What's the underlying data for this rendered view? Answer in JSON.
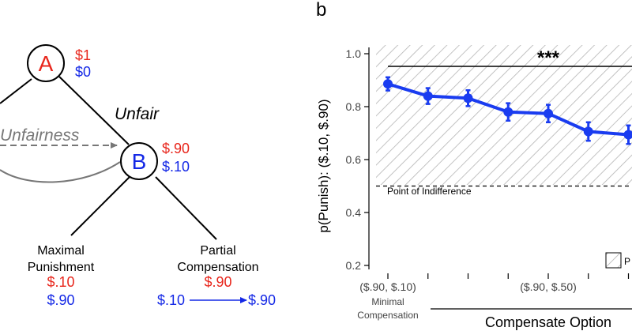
{
  "panel_a": {
    "node_a": {
      "label": "A",
      "amount_red": "$1",
      "amount_blue": "$0"
    },
    "node_b": {
      "label": "B",
      "amount_red": "$.90",
      "amount_blue": "$.10"
    },
    "unfair_label": "Unfair",
    "unfairness_label": "Unfairness",
    "left_option": {
      "title_line1": "Maximal",
      "title_line2": "Punishment",
      "amount_red": "$.10",
      "amount_blue": "$.90"
    },
    "right_option": {
      "title_line1": "Partial",
      "title_line2": "Compensation",
      "amount_red": "$.90",
      "amount_blue_from": "$.10",
      "amount_blue_to": "$.90"
    }
  },
  "panel_b": {
    "panel_label": "b",
    "significance": "***",
    "indifference_label": "Point of Indifference",
    "legend_partial": "P",
    "xtick_left_line1": "($.90, $.10)",
    "xtick_left_line2": "Minimal",
    "xtick_left_line3": "Compensation",
    "xtick_mid": "($.90, $.50)"
  },
  "colors": {
    "red": "#e8261c",
    "blue": "#1428e6",
    "line_blue": "#1a3cf0",
    "gray": "#777777"
  },
  "chart_data": {
    "type": "line",
    "title": "",
    "xlabel": "Compensate Option",
    "ylabel": "p(Punish): ($.10, $.90)",
    "ylim": [
      0.18,
      1.03
    ],
    "yticks": [
      "0.2",
      "0.4",
      "0.6",
      "0.8",
      "1.0"
    ],
    "ytick_values": [
      0.2,
      0.4,
      0.6,
      0.8,
      1.0
    ],
    "indifference_value": 0.5,
    "series": [
      {
        "name": "p(Punish)",
        "x": [
          1,
          2,
          3,
          4,
          5,
          6,
          7
        ],
        "values": [
          0.886,
          0.84,
          0.832,
          0.78,
          0.774,
          0.706,
          0.694
        ],
        "err": [
          0.025,
          0.03,
          0.03,
          0.033,
          0.033,
          0.035,
          0.035
        ]
      }
    ]
  }
}
